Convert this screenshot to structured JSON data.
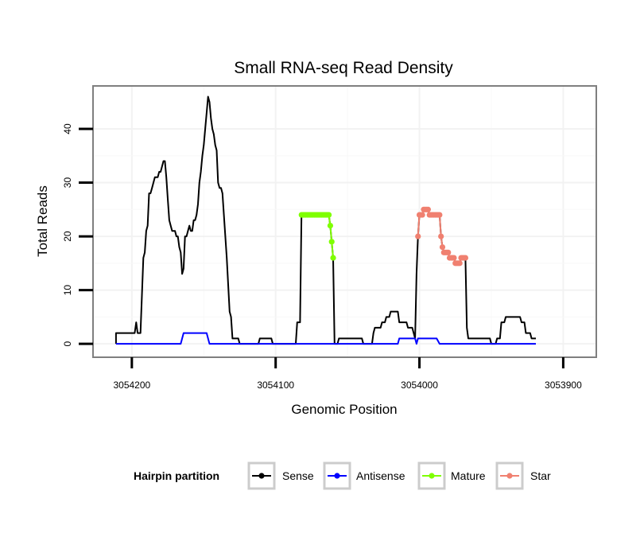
{
  "chart_data": {
    "type": "line",
    "title": "Small RNA-seq Read Density",
    "xlabel": "Genomic Position",
    "ylabel": "Total Reads",
    "xlim": [
      3054227,
      3053877
    ],
    "x_reversed": true,
    "ylim": [
      -2.5,
      48
    ],
    "x_ticks": [
      3054200,
      3054100,
      3054000,
      3053900
    ],
    "x_tick_labels": [
      "3054200",
      "3054100",
      "3054000",
      "3053900"
    ],
    "y_ticks": [
      0,
      10,
      20,
      30,
      40
    ],
    "y_tick_labels": [
      "0",
      "10",
      "20",
      "30",
      "40"
    ],
    "grid": true,
    "legend": {
      "title": "Hairpin partition",
      "position": "bottom"
    },
    "series": [
      {
        "name": "Sense",
        "color": "#000000",
        "markers": false,
        "points": [
          [
            3054211,
            0
          ],
          [
            3054211,
            2
          ],
          [
            3054208,
            2
          ],
          [
            3054198,
            2
          ],
          [
            3054197,
            4
          ],
          [
            3054196,
            2
          ],
          [
            3054194,
            2
          ],
          [
            3054193,
            9
          ],
          [
            3054192,
            16
          ],
          [
            3054191,
            17
          ],
          [
            3054190,
            21
          ],
          [
            3054189,
            22
          ],
          [
            3054188,
            28
          ],
          [
            3054187,
            28
          ],
          [
            3054186,
            29
          ],
          [
            3054185,
            30
          ],
          [
            3054184,
            31
          ],
          [
            3054182,
            31
          ],
          [
            3054181,
            32
          ],
          [
            3054180,
            32
          ],
          [
            3054179,
            33
          ],
          [
            3054178,
            34
          ],
          [
            3054177,
            34
          ],
          [
            3054176,
            31
          ],
          [
            3054175,
            27
          ],
          [
            3054174,
            23
          ],
          [
            3054173,
            22
          ],
          [
            3054172,
            21
          ],
          [
            3054170,
            21
          ],
          [
            3054169,
            20
          ],
          [
            3054168,
            20
          ],
          [
            3054167,
            18
          ],
          [
            3054166,
            17
          ],
          [
            3054165,
            13
          ],
          [
            3054164,
            14
          ],
          [
            3054163,
            20
          ],
          [
            3054162,
            20
          ],
          [
            3054161,
            21
          ],
          [
            3054160,
            22
          ],
          [
            3054159,
            21
          ],
          [
            3054158,
            21
          ],
          [
            3054157,
            23
          ],
          [
            3054156,
            23
          ],
          [
            3054155,
            24
          ],
          [
            3054154,
            26
          ],
          [
            3054153,
            30
          ],
          [
            3054152,
            32
          ],
          [
            3054151,
            35
          ],
          [
            3054150,
            37
          ],
          [
            3054149,
            40
          ],
          [
            3054148,
            43
          ],
          [
            3054147,
            46
          ],
          [
            3054146,
            45
          ],
          [
            3054145,
            42
          ],
          [
            3054144,
            40
          ],
          [
            3054143,
            39
          ],
          [
            3054142,
            37
          ],
          [
            3054141,
            36
          ],
          [
            3054140,
            30
          ],
          [
            3054139,
            29
          ],
          [
            3054138,
            29
          ],
          [
            3054137,
            28
          ],
          [
            3054136,
            24
          ],
          [
            3054135,
            20
          ],
          [
            3054134,
            16
          ],
          [
            3054133,
            11
          ],
          [
            3054132,
            6
          ],
          [
            3054131,
            5
          ],
          [
            3054130,
            1
          ],
          [
            3054126,
            1
          ],
          [
            3054125,
            0
          ],
          [
            3054112,
            0
          ],
          [
            3054111,
            1
          ],
          [
            3054103,
            1
          ],
          [
            3054102,
            0
          ],
          [
            3054086,
            0
          ],
          [
            3054085,
            4
          ],
          [
            3054083,
            4
          ],
          [
            3054082,
            24
          ],
          [
            3054063,
            24
          ],
          [
            3054062,
            22
          ],
          [
            3054061,
            19
          ],
          [
            3054060,
            16
          ],
          [
            3054059,
            0
          ],
          [
            3054057,
            0
          ],
          [
            3054056,
            1
          ],
          [
            3054040,
            1
          ],
          [
            3054039,
            0
          ],
          [
            3054033,
            0
          ],
          [
            3054032,
            2
          ],
          [
            3054031,
            3
          ],
          [
            3054027,
            3
          ],
          [
            3054026,
            4
          ],
          [
            3054024,
            4
          ],
          [
            3054023,
            5
          ],
          [
            3054021,
            5
          ],
          [
            3054020,
            6
          ],
          [
            3054015,
            6
          ],
          [
            3054014,
            4
          ],
          [
            3054009,
            4
          ],
          [
            3054008,
            3
          ],
          [
            3054005,
            3
          ],
          [
            3054004,
            2
          ],
          [
            3054003,
            1
          ],
          [
            3054002,
            13
          ],
          [
            3054001,
            20
          ],
          [
            3054000,
            24
          ],
          [
            3053998,
            24
          ],
          [
            3053997,
            25
          ],
          [
            3053994,
            25
          ],
          [
            3053993,
            24
          ],
          [
            3053986,
            24
          ],
          [
            3053985,
            20
          ],
          [
            3053984,
            18
          ],
          [
            3053983,
            17
          ],
          [
            3053980,
            17
          ],
          [
            3053979,
            16
          ],
          [
            3053976,
            16
          ],
          [
            3053975,
            15
          ],
          [
            3053972,
            15
          ],
          [
            3053971,
            16
          ],
          [
            3053968,
            16
          ],
          [
            3053967,
            3
          ],
          [
            3053966,
            1
          ],
          [
            3053951,
            1
          ],
          [
            3053950,
            0
          ],
          [
            3053947,
            0
          ],
          [
            3053946,
            1
          ],
          [
            3053944,
            1
          ],
          [
            3053943,
            4
          ],
          [
            3053941,
            4
          ],
          [
            3053940,
            5
          ],
          [
            3053930,
            5
          ],
          [
            3053929,
            4
          ],
          [
            3053927,
            4
          ],
          [
            3053926,
            2
          ],
          [
            3053923,
            2
          ],
          [
            3053922,
            1
          ],
          [
            3053919,
            1
          ]
        ]
      },
      {
        "name": "Antisense",
        "color": "#0000ff",
        "markers": false,
        "points": [
          [
            3054211,
            0
          ],
          [
            3054166,
            0
          ],
          [
            3054164,
            2
          ],
          [
            3054148,
            2
          ],
          [
            3054146,
            0
          ],
          [
            3054015,
            0
          ],
          [
            3054014,
            1
          ],
          [
            3054003,
            1
          ],
          [
            3054002,
            0
          ],
          [
            3054001,
            1
          ],
          [
            3053988,
            1
          ],
          [
            3053986,
            0
          ],
          [
            3053919,
            0
          ]
        ]
      },
      {
        "name": "Mature",
        "color": "#7fff00",
        "markers": true,
        "points": [
          [
            3054082,
            24
          ],
          [
            3054081,
            24
          ],
          [
            3054080,
            24
          ],
          [
            3054079,
            24
          ],
          [
            3054078,
            24
          ],
          [
            3054077,
            24
          ],
          [
            3054076,
            24
          ],
          [
            3054075,
            24
          ],
          [
            3054074,
            24
          ],
          [
            3054073,
            24
          ],
          [
            3054072,
            24
          ],
          [
            3054071,
            24
          ],
          [
            3054070,
            24
          ],
          [
            3054069,
            24
          ],
          [
            3054068,
            24
          ],
          [
            3054067,
            24
          ],
          [
            3054066,
            24
          ],
          [
            3054065,
            24
          ],
          [
            3054064,
            24
          ],
          [
            3054063,
            24
          ],
          [
            3054062,
            22
          ],
          [
            3054061,
            19
          ],
          [
            3054060,
            16
          ]
        ]
      },
      {
        "name": "Star",
        "color": "#f08070",
        "markers": true,
        "points": [
          [
            3054001,
            20
          ],
          [
            3054000,
            24
          ],
          [
            3053999,
            24
          ],
          [
            3053998,
            24
          ],
          [
            3053997,
            25
          ],
          [
            3053996,
            25
          ],
          [
            3053995,
            25
          ],
          [
            3053994,
            25
          ],
          [
            3053993,
            24
          ],
          [
            3053992,
            24
          ],
          [
            3053991,
            24
          ],
          [
            3053990,
            24
          ],
          [
            3053989,
            24
          ],
          [
            3053988,
            24
          ],
          [
            3053987,
            24
          ],
          [
            3053986,
            24
          ],
          [
            3053985,
            20
          ],
          [
            3053984,
            18
          ],
          [
            3053983,
            17
          ],
          [
            3053982,
            17
          ],
          [
            3053981,
            17
          ],
          [
            3053980,
            17
          ],
          [
            3053979,
            16
          ],
          [
            3053978,
            16
          ],
          [
            3053977,
            16
          ],
          [
            3053976,
            16
          ],
          [
            3053975,
            15
          ],
          [
            3053974,
            15
          ],
          [
            3053973,
            15
          ],
          [
            3053972,
            15
          ],
          [
            3053971,
            16
          ],
          [
            3053970,
            16
          ],
          [
            3053969,
            16
          ],
          [
            3053968,
            16
          ]
        ]
      }
    ]
  }
}
